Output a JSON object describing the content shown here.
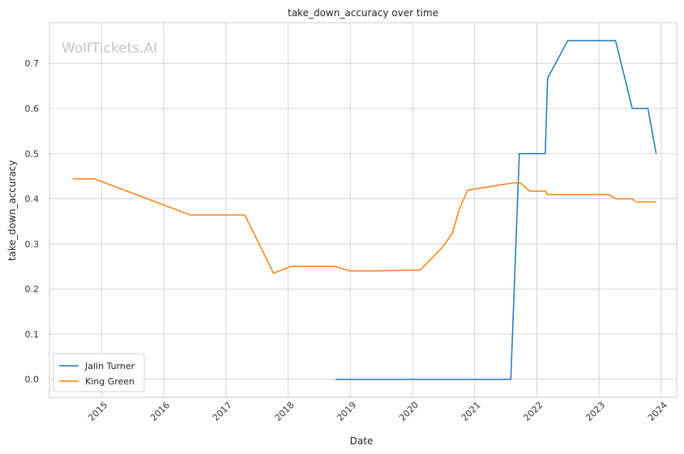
{
  "chart_data": {
    "type": "line",
    "title": "take_down_accuracy over time",
    "xlabel": "Date",
    "ylabel": "take_down_accuracy",
    "watermark": "WolfTickets.AI",
    "x_ticks": [
      "2015",
      "2016",
      "2017",
      "2018",
      "2019",
      "2020",
      "2021",
      "2022",
      "2023",
      "2024"
    ],
    "y_ticks": [
      "0.0",
      "0.1",
      "0.2",
      "0.3",
      "0.4",
      "0.5",
      "0.6",
      "0.7"
    ],
    "xlim": [
      "2014-03-01",
      "2024-04-01"
    ],
    "ylim": [
      -0.04,
      0.79
    ],
    "grid": true,
    "legend_position": "lower-left",
    "series": [
      {
        "name": "Jalin Turner",
        "color": "#1f77b4",
        "points": [
          [
            "2018-10-06",
            0.0
          ],
          [
            "2019-05-01",
            0.0
          ],
          [
            "2020-01-01",
            0.0
          ],
          [
            "2021-08-01",
            0.0
          ],
          [
            "2021-09-20",
            0.5
          ],
          [
            "2022-02-19",
            0.5
          ],
          [
            "2022-03-05",
            0.667
          ],
          [
            "2022-07-01",
            0.75
          ],
          [
            "2023-04-08",
            0.75
          ],
          [
            "2023-07-15",
            0.6
          ],
          [
            "2023-10-15",
            0.6
          ],
          [
            "2023-12-02",
            0.5
          ]
        ]
      },
      {
        "name": "King Green",
        "color": "#ff7f0e",
        "points": [
          [
            "2014-07-16",
            0.444
          ],
          [
            "2014-11-20",
            0.444
          ],
          [
            "2016-06-04",
            0.364
          ],
          [
            "2017-04-22",
            0.364
          ],
          [
            "2017-10-07",
            0.235
          ],
          [
            "2018-01-20",
            0.25
          ],
          [
            "2018-10-06",
            0.25
          ],
          [
            "2018-12-29",
            0.24
          ],
          [
            "2019-06-01",
            0.24
          ],
          [
            "2020-01-01",
            0.242
          ],
          [
            "2020-02-15",
            0.242
          ],
          [
            "2020-06-20",
            0.29
          ],
          [
            "2020-08-22",
            0.323
          ],
          [
            "2020-10-03",
            0.378
          ],
          [
            "2020-11-21",
            0.419
          ],
          [
            "2021-08-15",
            0.435
          ],
          [
            "2021-09-25",
            0.435
          ],
          [
            "2021-11-20",
            0.417
          ],
          [
            "2022-02-19",
            0.417
          ],
          [
            "2022-03-05",
            0.409
          ],
          [
            "2023-03-01",
            0.409
          ],
          [
            "2023-04-08",
            0.4
          ],
          [
            "2023-07-15",
            0.4
          ],
          [
            "2023-08-05",
            0.393
          ],
          [
            "2023-12-02",
            0.393
          ]
        ]
      }
    ]
  },
  "style": {
    "background": "#ffffff",
    "grid_color": "#d5d5d5",
    "spine_color": "#cccccc"
  }
}
